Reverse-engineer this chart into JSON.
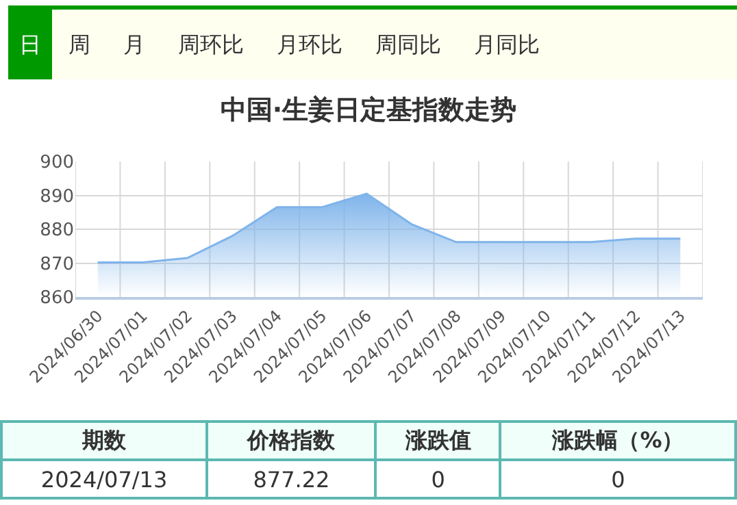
{
  "chart_data": {
    "type": "area",
    "title": "中国·生姜日定基指数走势",
    "categories": [
      "2024/06/30",
      "2024/07/01",
      "2024/07/02",
      "2024/07/03",
      "2024/07/04",
      "2024/07/05",
      "2024/07/06",
      "2024/07/07",
      "2024/07/08",
      "2024/07/09",
      "2024/07/10",
      "2024/07/11",
      "2024/07/12",
      "2024/07/13"
    ],
    "values": [
      870.2,
      870.2,
      871.5,
      878,
      886.5,
      886.5,
      890.5,
      881.5,
      876.2,
      876.2,
      876.2,
      876.2,
      877.2,
      877.22
    ],
    "color": "#7fb4ea",
    "ylim": [
      860,
      900
    ],
    "yticks": [
      860,
      870,
      880,
      890,
      900
    ],
    "grid": true,
    "marker": "none",
    "line_style": "solid",
    "annotations": [
      "日",
      "周",
      "月",
      "周环比",
      "月环比",
      "周同比",
      "月同比",
      "期数",
      "价格指数",
      "涨跌值",
      "涨跌幅（%）",
      "2024/07/13",
      "877.22",
      "0",
      "0"
    ]
  }
}
